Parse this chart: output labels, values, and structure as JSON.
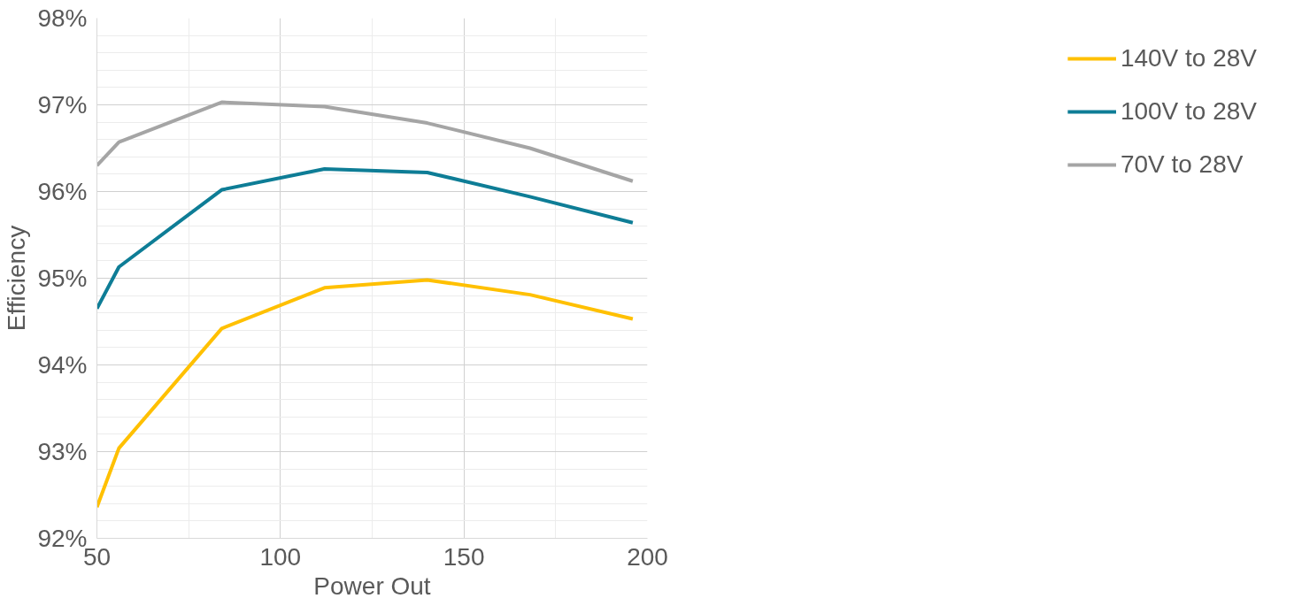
{
  "chart_data": {
    "type": "line",
    "xlabel": "Power Out",
    "ylabel": "Efficiency",
    "x": [
      50,
      56,
      84,
      112,
      140,
      168,
      196
    ],
    "series": [
      {
        "name": "140V to 28V",
        "color": "#ffc000",
        "values": [
          92.36,
          93.04,
          94.42,
          94.89,
          94.98,
          94.81,
          94.53
        ]
      },
      {
        "name": "100V to 28V",
        "color": "#0e7d96",
        "values": [
          94.65,
          95.13,
          96.02,
          96.26,
          96.22,
          95.94,
          95.64
        ]
      },
      {
        "name": "70V to 28V",
        "color": "#a5a5a5",
        "values": [
          96.3,
          96.57,
          97.03,
          96.98,
          96.79,
          96.5,
          96.12
        ]
      }
    ],
    "xlim": [
      50,
      200
    ],
    "xticks": [
      50,
      100,
      150,
      200
    ],
    "ylim": [
      92,
      98
    ],
    "yticks": [
      {
        "value": 92,
        "label": "92%"
      },
      {
        "value": 93,
        "label": "93%"
      },
      {
        "value": 94,
        "label": "94%"
      },
      {
        "value": 95,
        "label": "95%"
      },
      {
        "value": 96,
        "label": "96%"
      },
      {
        "value": 97,
        "label": "97%"
      },
      {
        "value": 98,
        "label": "98%"
      }
    ],
    "grid": true,
    "legend": "right",
    "marker": "none",
    "line_style": "solid"
  }
}
